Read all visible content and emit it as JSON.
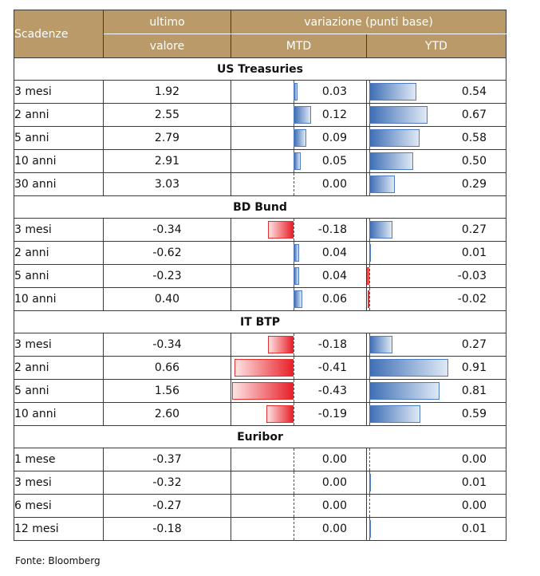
{
  "header": {
    "scadenze": "Scadenze",
    "ultimo_line1": "ultimo",
    "ultimo_line2": "valore",
    "variazione": "variazione (punti base)",
    "mtd": "MTD",
    "ytd": "YTD"
  },
  "colors": {
    "header_bg": "#b99a68",
    "positive_bar": "#3e6fb5",
    "negative_bar": "#e8202a"
  },
  "sections": [
    {
      "title": "US Treasuries",
      "rows": [
        {
          "name": "3 mesi",
          "value": "1.92",
          "mtd": "0.03",
          "mtd_num": 0.03,
          "ytd": "0.54",
          "ytd_num": 0.54
        },
        {
          "name": "2 anni",
          "value": "2.55",
          "mtd": "0.12",
          "mtd_num": 0.12,
          "ytd": "0.67",
          "ytd_num": 0.67
        },
        {
          "name": "5 anni",
          "value": "2.79",
          "mtd": "0.09",
          "mtd_num": 0.09,
          "ytd": "0.58",
          "ytd_num": 0.58
        },
        {
          "name": "10 anni",
          "value": "2.91",
          "mtd": "0.05",
          "mtd_num": 0.05,
          "ytd": "0.50",
          "ytd_num": 0.5
        },
        {
          "name": "30 anni",
          "value": "3.03",
          "mtd": "0.00",
          "mtd_num": 0.0,
          "ytd": "0.29",
          "ytd_num": 0.29
        }
      ]
    },
    {
      "title": "BD Bund",
      "rows": [
        {
          "name": "3 mesi",
          "value": "-0.34",
          "mtd": "-0.18",
          "mtd_num": -0.18,
          "ytd": "0.27",
          "ytd_num": 0.27
        },
        {
          "name": "2 anni",
          "value": "-0.62",
          "mtd": "0.04",
          "mtd_num": 0.04,
          "ytd": "0.01",
          "ytd_num": 0.01
        },
        {
          "name": "5 anni",
          "value": "-0.23",
          "mtd": "0.04",
          "mtd_num": 0.04,
          "ytd": "-0.03",
          "ytd_num": -0.03
        },
        {
          "name": "10 anni",
          "value": "0.40",
          "mtd": "0.06",
          "mtd_num": 0.06,
          "ytd": "-0.02",
          "ytd_num": -0.02
        }
      ]
    },
    {
      "title": "IT BTP",
      "rows": [
        {
          "name": "3 mesi",
          "value": "-0.34",
          "mtd": "-0.18",
          "mtd_num": -0.18,
          "ytd": "0.27",
          "ytd_num": 0.27
        },
        {
          "name": "2 anni",
          "value": "0.66",
          "mtd": "-0.41",
          "mtd_num": -0.41,
          "ytd": "0.91",
          "ytd_num": 0.91
        },
        {
          "name": "5 anni",
          "value": "1.56",
          "mtd": "-0.43",
          "mtd_num": -0.43,
          "ytd": "0.81",
          "ytd_num": 0.81
        },
        {
          "name": "10 anni",
          "value": "2.60",
          "mtd": "-0.19",
          "mtd_num": -0.19,
          "ytd": "0.59",
          "ytd_num": 0.59
        }
      ]
    },
    {
      "title": "Euribor",
      "rows": [
        {
          "name": "1 mese",
          "value": "-0.37",
          "mtd": "0.00",
          "mtd_num": 0.0,
          "ytd": "0.00",
          "ytd_num": 0.0
        },
        {
          "name": "3 mesi",
          "value": "-0.32",
          "mtd": "0.00",
          "mtd_num": 0.0,
          "ytd": "0.01",
          "ytd_num": 0.01
        },
        {
          "name": "6 mesi",
          "value": "-0.27",
          "mtd": "0.00",
          "mtd_num": 0.0,
          "ytd": "0.00",
          "ytd_num": 0.0
        },
        {
          "name": "12 mesi",
          "value": "-0.18",
          "mtd": "0.00",
          "mtd_num": 0.0,
          "ytd": "0.01",
          "ytd_num": 0.01
        }
      ]
    }
  ],
  "source": "Fonte: Bloomberg"
}
